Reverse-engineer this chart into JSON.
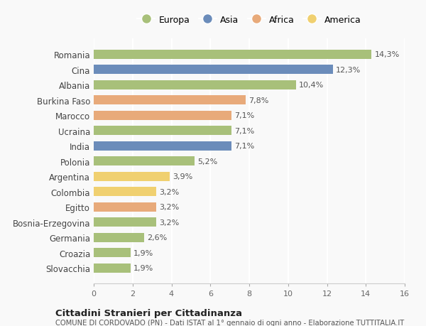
{
  "categories": [
    "Romania",
    "Cina",
    "Albania",
    "Burkina Faso",
    "Marocco",
    "Ucraina",
    "India",
    "Polonia",
    "Argentina",
    "Colombia",
    "Egitto",
    "Bosnia-Erzegovina",
    "Germania",
    "Croazia",
    "Slovacchia"
  ],
  "values": [
    14.3,
    12.3,
    10.4,
    7.8,
    7.1,
    7.1,
    7.1,
    5.2,
    3.9,
    3.2,
    3.2,
    3.2,
    2.6,
    1.9,
    1.9
  ],
  "labels": [
    "14,3%",
    "12,3%",
    "10,4%",
    "7,8%",
    "7,1%",
    "7,1%",
    "7,1%",
    "5,2%",
    "3,9%",
    "3,2%",
    "3,2%",
    "3,2%",
    "2,6%",
    "1,9%",
    "1,9%"
  ],
  "continents": [
    "Europa",
    "Asia",
    "Europa",
    "Africa",
    "Africa",
    "Europa",
    "Asia",
    "Europa",
    "America",
    "America",
    "Africa",
    "Europa",
    "Europa",
    "Europa",
    "Europa"
  ],
  "colors": {
    "Europa": "#a8c07a",
    "Asia": "#6b8cba",
    "Africa": "#e8aa7a",
    "America": "#f0d070"
  },
  "legend_order": [
    "Europa",
    "Asia",
    "Africa",
    "America"
  ],
  "xlim": [
    0,
    16
  ],
  "xticks": [
    0,
    2,
    4,
    6,
    8,
    10,
    12,
    14,
    16
  ],
  "title": "Cittadini Stranieri per Cittadinanza",
  "subtitle": "COMUNE DI CORDOVADO (PN) - Dati ISTAT al 1° gennaio di ogni anno - Elaborazione TUTTITALIA.IT",
  "background_color": "#f9f9f9",
  "grid_color": "#ffffff",
  "bar_height": 0.6
}
